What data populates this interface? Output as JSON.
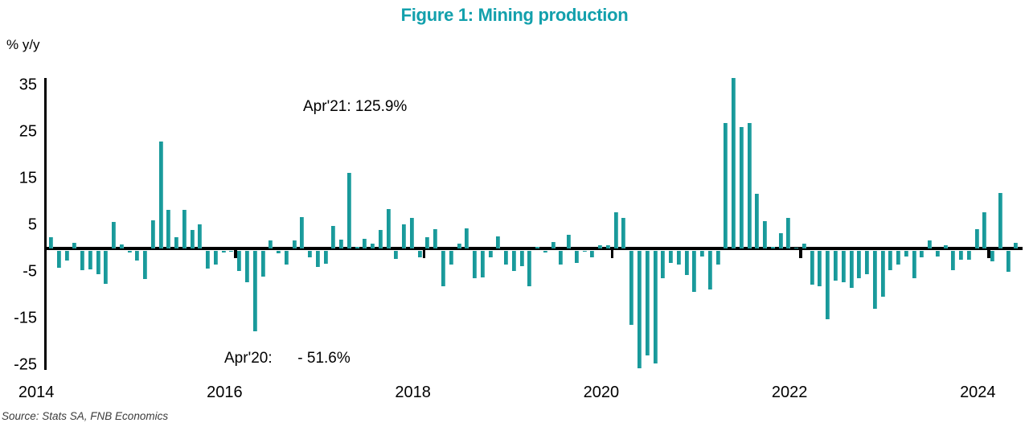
{
  "title": "Figure 1: Mining production",
  "unit_label": "% y/y",
  "source": "Source: Stats SA, FNB Economics",
  "annotations": {
    "peak": "Apr'21: 125.9%",
    "trough": "Apr'20:      - 51.6%"
  },
  "chart_data": {
    "type": "bar",
    "title": "Figure 1: Mining production",
    "ylabel": "% y/y",
    "unit": "percent year-on-year",
    "frequency": "monthly",
    "x_range": [
      "2014-01",
      "2024-04"
    ],
    "ylim": [
      -25,
      35
    ],
    "yticks": [
      35,
      25,
      15,
      5,
      -5,
      -15,
      -25
    ],
    "year_ticks": [
      2014,
      2016,
      2018,
      2020,
      2022,
      2024
    ],
    "bar_color": "#1a9e9e",
    "grid": false,
    "legend": "none",
    "annotated_points": [
      {
        "month": "Apr'20",
        "value": -51.6,
        "clipped_at_axis": true
      },
      {
        "month": "Apr'21",
        "value": 125.9,
        "clipped_at_axis": true
      }
    ],
    "series": [
      {
        "year": 2014,
        "values": [
          2.5,
          -4.0,
          -2.4,
          1.2,
          -4.5,
          -4.3,
          -5.3,
          -7.4,
          5.7,
          0.9,
          -0.7,
          -2.5
        ]
      },
      {
        "year": 2015,
        "values": [
          -6.4,
          6.0,
          23.0,
          8.3,
          2.4,
          8.3,
          4.0,
          5.1,
          -4.2,
          -3.2,
          -0.7,
          -0.5
        ]
      },
      {
        "year": 2016,
        "values": [
          -4.7,
          -7.1,
          -17.6,
          -5.8,
          1.7,
          -0.9,
          -3.2,
          1.8,
          6.7,
          -1.8,
          -3.8,
          -3.1
        ]
      },
      {
        "year": 2017,
        "values": [
          4.8,
          1.9,
          16.2,
          0.3,
          2.1,
          1.0,
          4.0,
          8.4,
          -2.0,
          5.1,
          6.6,
          -1.7
        ]
      },
      {
        "year": 2018,
        "values": [
          2.5,
          4.1,
          -7.9,
          -3.3,
          1.0,
          4.4,
          -6.3,
          -6.0,
          -1.7,
          2.6,
          -3.3,
          -4.7
        ]
      },
      {
        "year": 2019,
        "values": [
          -3.6,
          -8.0,
          0.4,
          -0.7,
          1.3,
          -3.2,
          2.9,
          -3.0,
          -0.4,
          -1.7,
          0.7,
          0.7
        ]
      },
      {
        "year": 2020,
        "values": [
          7.8,
          6.6,
          -16.2,
          -51.6,
          -22.8,
          -24.5,
          -6.2,
          -3.0,
          -3.3,
          -5.5,
          -9.2,
          -1.6
        ]
      },
      {
        "year": 2021,
        "values": [
          -8.6,
          -3.2,
          27.0,
          125.9,
          26.0,
          27.0,
          11.8,
          5.8,
          0.3,
          3.2,
          6.5,
          0.2
        ]
      },
      {
        "year": 2022,
        "values": [
          1.0,
          -7.6,
          -7.9,
          -15.0,
          -6.7,
          -7.1,
          -8.3,
          -6.3,
          -5.4,
          -12.7,
          -10.2,
          -4.5
        ]
      },
      {
        "year": 2023,
        "values": [
          -3.2,
          -1.6,
          -6.3,
          -1.7,
          1.8,
          -1.5,
          0.7,
          -4.5,
          -2.2,
          -2.2,
          4.2,
          7.8
        ]
      },
      {
        "year": 2024,
        "values": [
          -2.6,
          12.0,
          -4.9,
          1.2
        ]
      }
    ]
  }
}
